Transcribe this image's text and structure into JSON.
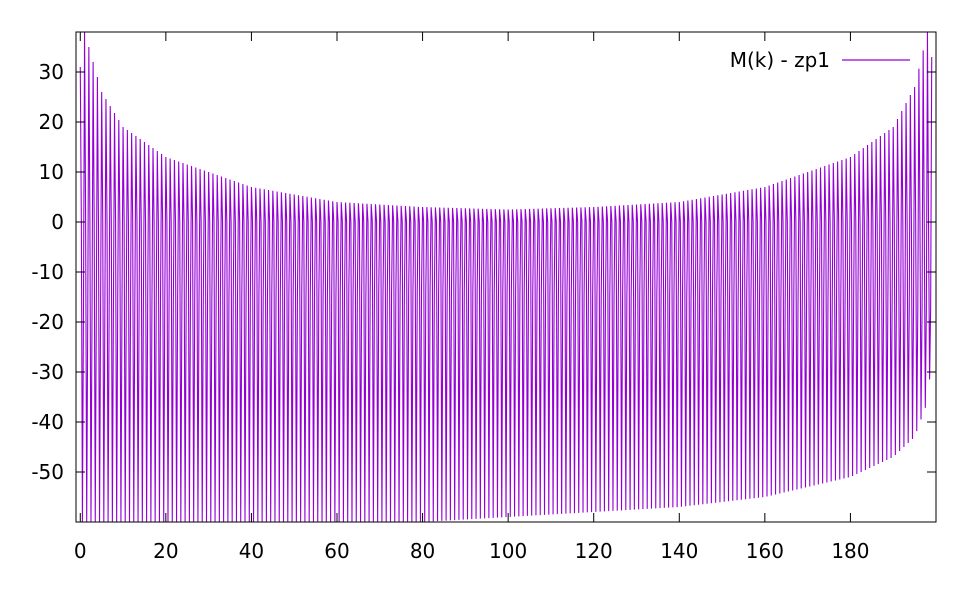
{
  "chart_data": {
    "type": "line",
    "title": "",
    "xlabel": "",
    "ylabel": "",
    "xlim": [
      -1,
      200
    ],
    "ylim": [
      -60,
      38
    ],
    "x_ticks": [
      0,
      20,
      40,
      60,
      80,
      100,
      120,
      140,
      160,
      180
    ],
    "y_ticks": [
      -50,
      -40,
      -30,
      -20,
      -10,
      0,
      10,
      20,
      30
    ],
    "x_tick_labels": [
      "0",
      "20",
      "40",
      "60",
      "80",
      "100",
      "120",
      "140",
      "160",
      "180"
    ],
    "y_tick_labels": [
      "-50",
      "-40",
      "-30",
      "-20",
      "-10",
      "0",
      "10",
      "20",
      "30"
    ],
    "grid": false,
    "legend": {
      "position": "top-right",
      "entries": [
        "M(k) - zp1"
      ]
    },
    "series": [
      {
        "name": "M(k) - zp1",
        "color": "#9400d3",
        "k_range": [
          0,
          199
        ],
        "k_step": 0.25,
        "envelope_k": [
          0,
          1,
          5,
          10,
          20,
          40,
          60,
          80,
          100,
          120,
          140,
          160,
          180,
          190,
          195,
          198,
          199
        ],
        "upper_envelope": [
          31,
          38,
          26,
          19,
          13,
          7,
          4,
          3,
          2.5,
          3,
          4,
          7,
          13,
          19,
          27,
          38,
          33
        ],
        "lower_envelope": [
          -60,
          -60,
          -60,
          -60,
          -60,
          -60,
          -60,
          -60,
          -59,
          -58,
          -57,
          -55,
          -51,
          -47,
          -43,
          -36,
          -27
        ],
        "mid_envelope": [
          -12,
          -18,
          -17,
          -16,
          -16,
          -15,
          -15,
          -14,
          -14,
          -15,
          -15,
          -16,
          -16,
          -16,
          -17,
          -17,
          -17
        ],
        "baseline": 0
      }
    ]
  }
}
